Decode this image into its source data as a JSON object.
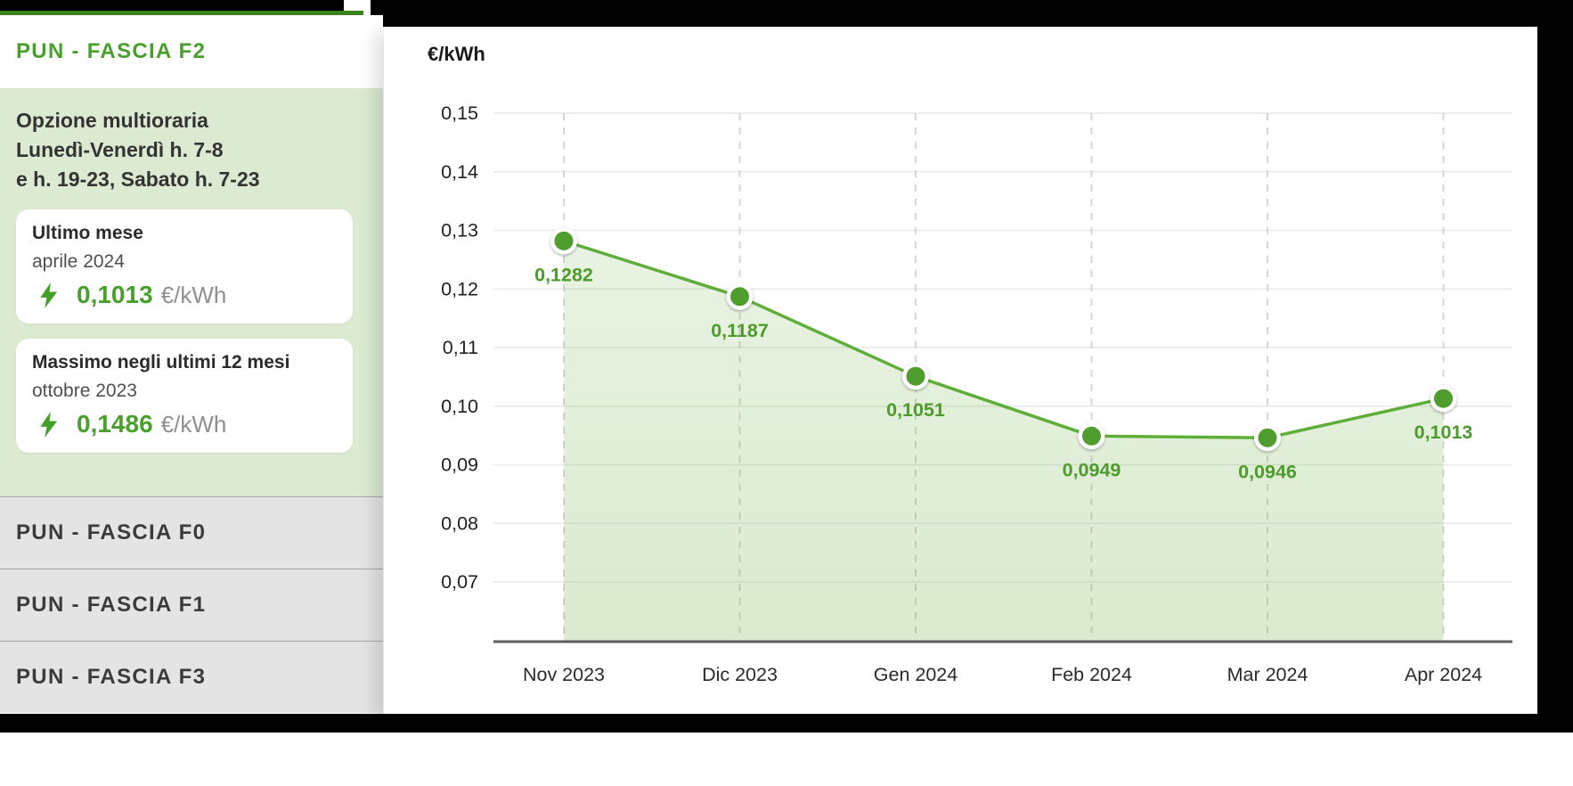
{
  "window": {
    "frame_color": "#000000"
  },
  "sidebar": {
    "active_tab": {
      "label": "PUN - FASCIA F2"
    },
    "accent_color": "#36831d",
    "active_text_color": "#48a02c",
    "description_lines": [
      "Opzione multioraria",
      "Lunedì-Venerdì h. 7-8",
      "e h. 19-23, Sabato h. 7-23"
    ],
    "cards": [
      {
        "title": "Ultimo mese",
        "subtitle": "aprile 2024",
        "value": "0,1013",
        "unit": "€/kWh"
      },
      {
        "title": "Massimo negli ultimi 12 mesi",
        "subtitle": "ottobre 2023",
        "value": "0,1486",
        "unit": "€/kWh"
      }
    ],
    "tabs": [
      "PUN - FASCIA F0",
      "PUN - FASCIA F1",
      "PUN - FASCIA F3"
    ],
    "value_color": "#48a02c",
    "bolt_color": "#43a024"
  },
  "chart_data": {
    "type": "area",
    "title": "€/kWh",
    "categories": [
      "Nov 2023",
      "Dic 2023",
      "Gen 2024",
      "Feb 2024",
      "Mar 2024",
      "Apr 2024"
    ],
    "values": [
      0.1282,
      0.1187,
      0.1051,
      0.0949,
      0.0946,
      0.1013
    ],
    "point_labels": [
      "0,1282",
      "0,1187",
      "0,1051",
      "0,0949",
      "0,0946",
      "0,1013"
    ],
    "y_ticks": [
      "0,15",
      "0,14",
      "0,13",
      "0,12",
      "0,11",
      "0,10",
      "0,09",
      "0,08",
      "0,07"
    ],
    "ylim": [
      0.07,
      0.15
    ],
    "grid": true,
    "legend_position": "none",
    "colors": {
      "line": "#5fae3a",
      "point": "#4f9d2d",
      "point_label": "#4c9b2b",
      "area": "#6aae3f",
      "h_grid": "#e9e9e9",
      "v_grid_dash": "#d6d6d6",
      "axis": "#5e5e5e",
      "tick_text": "#1f1f1f"
    }
  }
}
